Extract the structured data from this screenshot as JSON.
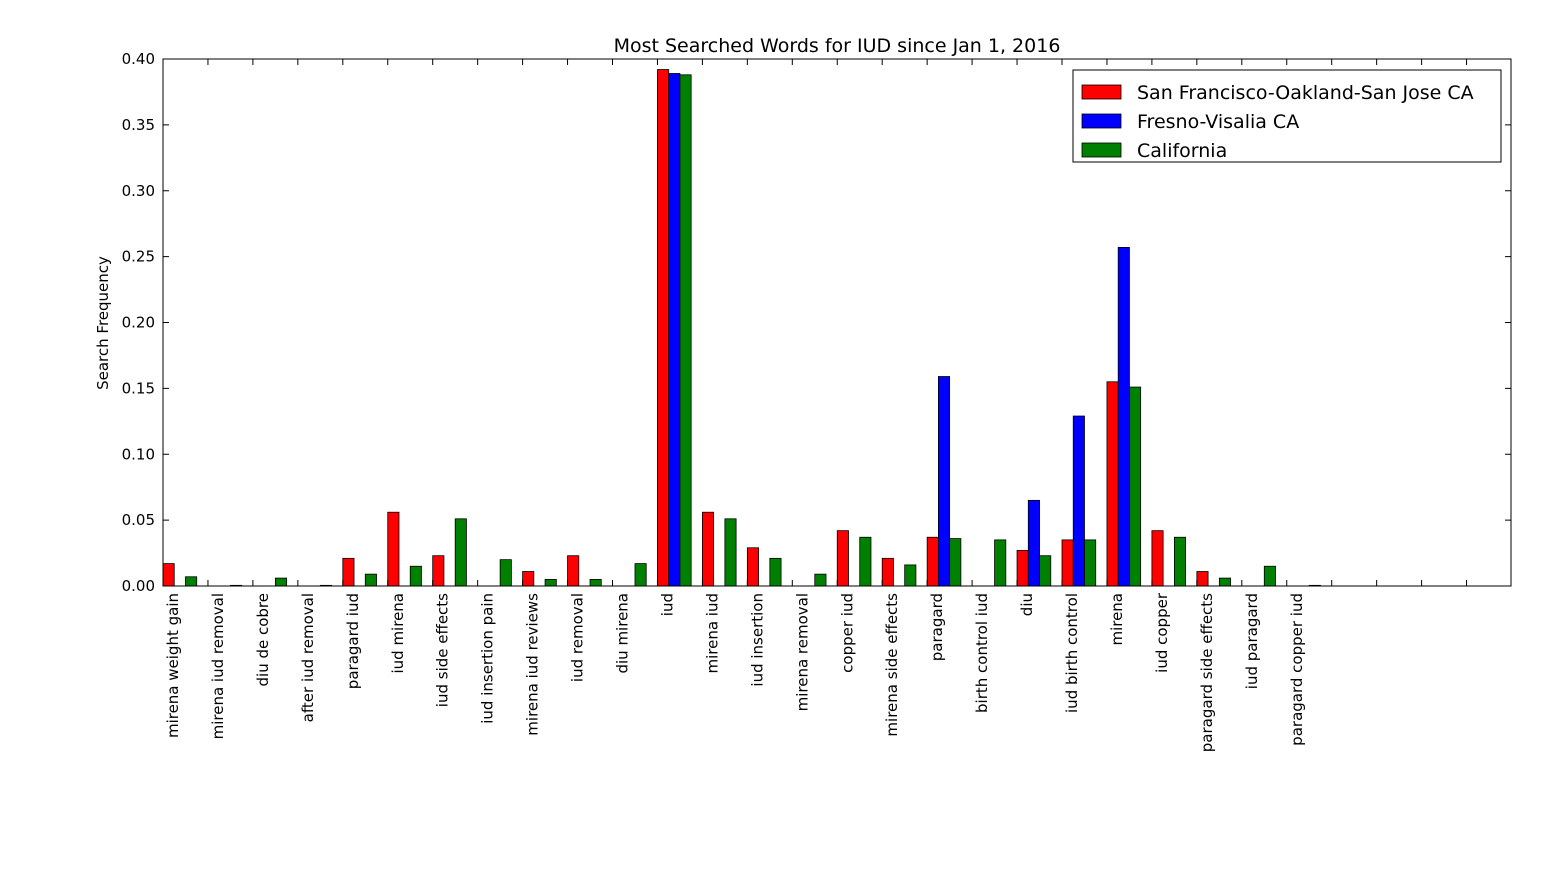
{
  "chart_data": {
    "type": "bar",
    "title": "Most Searched Words for IUD since Jan 1, 2016",
    "xlabel": "",
    "ylabel": "Search Frequency",
    "ylim": [
      0,
      0.4
    ],
    "yticks": [
      "0.00",
      "0.05",
      "0.10",
      "0.15",
      "0.20",
      "0.25",
      "0.30",
      "0.35",
      "0.40"
    ],
    "grid": false,
    "legend_position": "top-right",
    "categories": [
      "mirena weight gain",
      "mirena iud removal",
      "diu de cobre",
      "after iud removal",
      "paragard iud",
      "iud mirena",
      "iud side effects",
      "iud insertion pain",
      "mirena iud reviews",
      "iud removal",
      "diu mirena",
      "iud",
      "mirena iud",
      "iud insertion",
      "mirena removal",
      "copper iud",
      "mirena side effects",
      "paragard",
      "birth control iud",
      "diu",
      "iud birth control",
      "mirena",
      "iud copper",
      "paragard side effects",
      "iud paragard",
      "paragard copper iud"
    ],
    "series": [
      {
        "name": "San Francisco-Oakland-San Jose CA",
        "color": "#ff0000",
        "values": [
          0.017,
          0,
          0,
          0,
          0.021,
          0.056,
          0.023,
          0,
          0.011,
          0.023,
          0,
          0.392,
          0.056,
          0.029,
          0,
          0.042,
          0.021,
          0.037,
          0,
          0.027,
          0.035,
          0.155,
          0.042,
          0.011,
          0,
          0
        ]
      },
      {
        "name": "Fresno-Visalia CA",
        "color": "#0000ff",
        "values": [
          0,
          0,
          0,
          0,
          0,
          0,
          0,
          0,
          0,
          0,
          0,
          0.389,
          0,
          0,
          0,
          0,
          0,
          0.159,
          0,
          0.065,
          0.129,
          0.257,
          0,
          0,
          0,
          0
        ]
      },
      {
        "name": "California",
        "color": "#008000",
        "values": [
          0.007,
          0.0005,
          0.006,
          0.0005,
          0.009,
          0.015,
          0.051,
          0.02,
          0.005,
          0.005,
          0.017,
          0.388,
          0.051,
          0.021,
          0.009,
          0.037,
          0.016,
          0.036,
          0.035,
          0.023,
          0.035,
          0.151,
          0.037,
          0.006,
          0.015,
          0.0005
        ]
      }
    ]
  }
}
